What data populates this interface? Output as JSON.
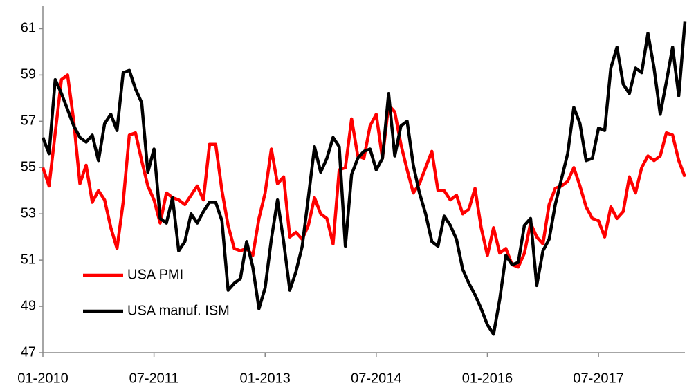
{
  "chart_data": {
    "type": "line",
    "x": [
      "01-2010",
      "02-2010",
      "03-2010",
      "04-2010",
      "05-2010",
      "06-2010",
      "07-2010",
      "08-2010",
      "09-2010",
      "10-2010",
      "11-2010",
      "12-2010",
      "01-2011",
      "02-2011",
      "03-2011",
      "04-2011",
      "05-2011",
      "06-2011",
      "07-2011",
      "08-2011",
      "09-2011",
      "10-2011",
      "11-2011",
      "12-2011",
      "01-2012",
      "02-2012",
      "03-2012",
      "04-2012",
      "05-2012",
      "06-2012",
      "07-2012",
      "08-2012",
      "09-2012",
      "10-2012",
      "11-2012",
      "12-2012",
      "01-2013",
      "02-2013",
      "03-2013",
      "04-2013",
      "05-2013",
      "06-2013",
      "07-2013",
      "08-2013",
      "09-2013",
      "10-2013",
      "11-2013",
      "12-2013",
      "01-2014",
      "02-2014",
      "03-2014",
      "04-2014",
      "05-2014",
      "06-2014",
      "07-2014",
      "08-2014",
      "09-2014",
      "10-2014",
      "11-2014",
      "12-2014",
      "01-2015",
      "02-2015",
      "03-2015",
      "04-2015",
      "05-2015",
      "06-2015",
      "07-2015",
      "08-2015",
      "09-2015",
      "10-2015",
      "11-2015",
      "12-2015",
      "01-2016",
      "02-2016",
      "03-2016",
      "04-2016",
      "05-2016",
      "06-2016",
      "07-2016",
      "08-2016",
      "09-2016",
      "10-2016",
      "11-2016",
      "12-2016",
      "01-2017",
      "02-2017",
      "03-2017",
      "04-2017",
      "05-2017",
      "06-2017",
      "07-2017",
      "08-2017",
      "09-2017",
      "10-2017",
      "11-2017",
      "12-2017",
      "01-2018",
      "02-2018",
      "03-2018",
      "04-2018",
      "05-2018",
      "06-2018",
      "07-2018",
      "08-2018",
      "09-2018"
    ],
    "xlim": [
      "01-2010",
      "09-2018"
    ],
    "xticks": [
      "01-2010",
      "07-2011",
      "01-2013",
      "07-2014",
      "01-2016",
      "07-2017"
    ],
    "ylim": [
      47,
      62
    ],
    "yticks": [
      47,
      49,
      51,
      53,
      55,
      57,
      59,
      61
    ],
    "legend": "lower left",
    "series": [
      {
        "name": "USA PMI",
        "color": "#ff0000",
        "values": [
          55.0,
          54.2,
          56.5,
          58.8,
          59.0,
          57.0,
          54.3,
          55.1,
          53.5,
          54.0,
          53.6,
          52.4,
          51.5,
          53.5,
          56.4,
          56.5,
          55.3,
          54.2,
          53.6,
          52.6,
          53.9,
          53.7,
          53.6,
          53.4,
          53.8,
          54.2,
          53.6,
          56.0,
          56.0,
          54.0,
          52.5,
          51.5,
          51.4,
          51.5,
          51.2,
          52.8,
          53.9,
          55.8,
          54.3,
          54.6,
          52.0,
          52.2,
          51.9,
          52.5,
          53.7,
          53.0,
          52.8,
          51.7,
          54.9,
          55.0,
          57.1,
          55.5,
          55.4,
          56.8,
          57.3,
          55.4,
          57.7,
          57.4,
          56.0,
          54.9,
          53.9,
          54.3,
          55.0,
          55.7,
          54.0,
          54.0,
          53.6,
          53.8,
          53.0,
          53.2,
          54.1,
          52.4,
          51.2,
          52.4,
          51.3,
          51.5,
          50.8,
          50.7,
          51.3,
          52.6,
          52.0,
          51.7,
          53.4,
          54.1,
          54.2,
          54.4,
          55.0,
          54.2,
          53.3,
          52.8,
          52.7,
          52.0,
          53.3,
          52.8,
          53.1,
          54.6,
          53.9,
          55.0,
          55.5,
          55.3,
          55.5,
          56.5,
          56.4,
          55.3,
          54.6
        ]
      },
      {
        "name": "USA manuf. ISM",
        "color": "#000000",
        "values": [
          56.3,
          55.6,
          58.8,
          58.2,
          57.5,
          56.8,
          56.3,
          56.1,
          56.4,
          55.3,
          56.9,
          57.3,
          56.6,
          59.1,
          59.2,
          58.4,
          57.8,
          54.8,
          55.8,
          52.8,
          52.6,
          53.7,
          51.4,
          51.8,
          53.0,
          52.6,
          53.1,
          53.5,
          53.5,
          52.7,
          49.7,
          50.0,
          50.2,
          51.8,
          50.7,
          48.9,
          49.8,
          51.9,
          53.6,
          51.8,
          49.7,
          50.5,
          51.6,
          53.7,
          55.9,
          54.8,
          55.4,
          56.3,
          55.9,
          51.6,
          54.7,
          55.4,
          55.7,
          55.8,
          54.9,
          55.4,
          58.2,
          55.5,
          56.8,
          57.0,
          55.1,
          53.9,
          53.0,
          51.8,
          51.6,
          52.9,
          52.5,
          51.9,
          50.6,
          50.0,
          49.5,
          48.9,
          48.2,
          47.8,
          49.3,
          51.2,
          50.8,
          50.9,
          52.5,
          52.8,
          49.9,
          51.4,
          51.9,
          53.4,
          54.5,
          55.6,
          57.6,
          56.9,
          55.3,
          55.4,
          56.7,
          56.6,
          59.3,
          60.2,
          58.6,
          58.2,
          59.3,
          59.1,
          60.8,
          59.3,
          57.3,
          58.7,
          60.2,
          58.1,
          61.3
        ]
      }
    ]
  }
}
